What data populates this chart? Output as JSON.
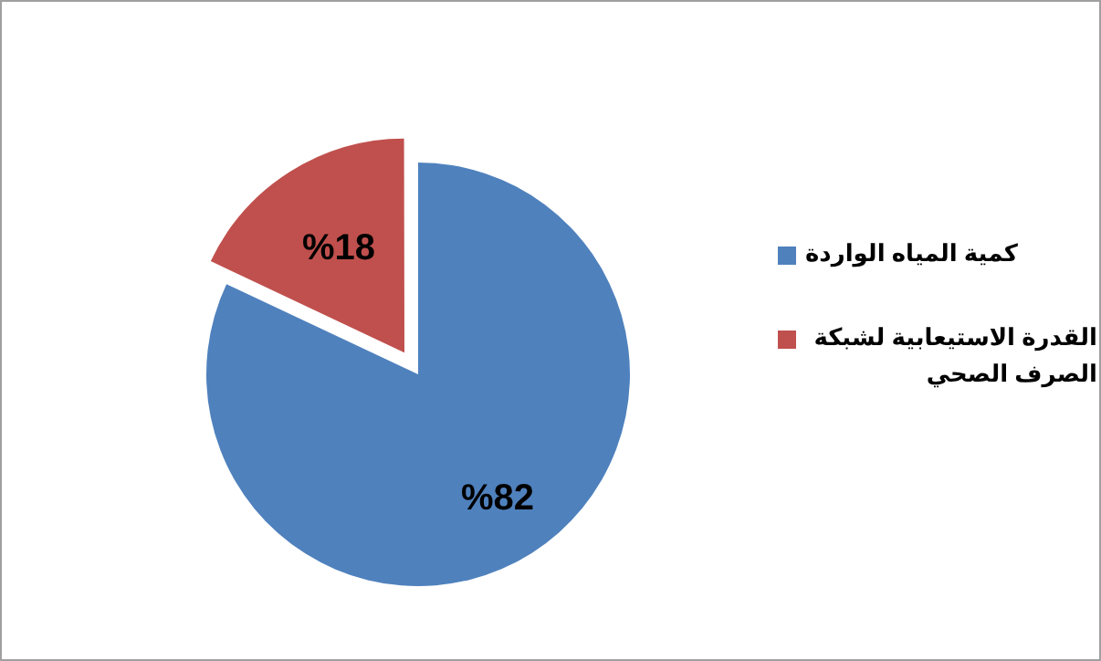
{
  "chart_data": {
    "type": "pie",
    "categories": [
      "كمية المياه الواردة",
      "القدرة الاستيعابية لشبكة الصرف الصحي"
    ],
    "values": [
      82,
      18
    ],
    "colors": [
      "#4f81bd",
      "#c0504d"
    ],
    "value_labels": [
      "%82",
      "%18"
    ],
    "legend": "right"
  }
}
